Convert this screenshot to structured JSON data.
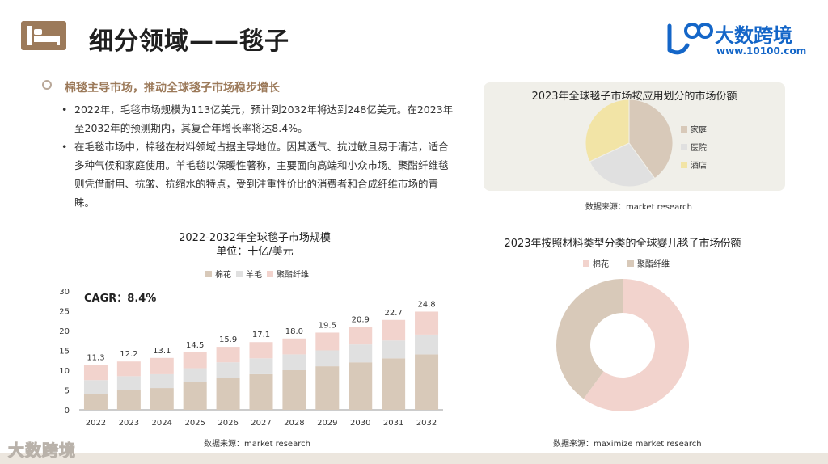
{
  "page": {
    "title": "细分领域——毯子",
    "brand_name": "大数跨境",
    "brand_url": "www.10100.com",
    "watermark": "大数跨境"
  },
  "section": {
    "heading": "棉毯主导市场，推动全球毯子市场稳步增长",
    "bullets": [
      "2022年，毛毯市场规模为113亿美元，预计到2032年将达到248亿美元。在2023年至2032年的预测期内，其复合年增长率将达8.4%。",
      "在毛毯市场中，棉毯在材料领域占据主导地位。因其透气、抗过敏且易于清洁，适合多种气候和家庭使用。羊毛毯以保暖性著称，主要面向高端和小众市场。聚酯纤维毯则凭借耐用、抗皱、抗缩水的特点，受到注重性价比的消费者和合成纤维市场的青睐。"
    ]
  },
  "colors": {
    "cotton": "#d8c9b9",
    "wool": "#e0e0e0",
    "polyester": "#f2d3cd",
    "home": "#d8c9b9",
    "hospital": "#e0e0e0",
    "hotel": "#f2e4a6",
    "accent_brown": "#9c7a5a",
    "brand_blue": "#1466c8"
  },
  "chart_data": [
    {
      "type": "bar",
      "stacked": true,
      "title": "2022-2032年全球毯子市场规模",
      "subtitle": "单位：十亿/美元",
      "annotation": "CAGR：8.4%",
      "source": "数据来源：market research",
      "categories": [
        "2022",
        "2023",
        "2024",
        "2025",
        "2026",
        "2027",
        "2028",
        "2029",
        "2030",
        "2031",
        "2032"
      ],
      "totals": [
        11.3,
        12.2,
        13.1,
        14.5,
        15.9,
        17.1,
        18.0,
        19.5,
        20.9,
        22.7,
        24.8
      ],
      "series": [
        {
          "name": "棉花",
          "values": [
            4,
            5,
            5.5,
            7,
            8,
            9,
            10,
            11,
            12,
            13,
            14
          ]
        },
        {
          "name": "羊毛",
          "values": [
            3.5,
            3.5,
            3.5,
            3.5,
            4,
            4,
            4,
            4,
            4.5,
            4.5,
            5
          ]
        },
        {
          "name": "聚酯纤维",
          "values": [
            3.8,
            3.7,
            4.1,
            4.0,
            3.9,
            4.1,
            4.0,
            4.5,
            4.4,
            5.2,
            5.8
          ]
        }
      ],
      "ylim": [
        0,
        30
      ],
      "yticks": [
        0,
        5,
        10,
        15,
        20,
        25,
        30
      ],
      "legend": "top"
    },
    {
      "type": "pie",
      "title": "2023年全球毯子市场按应用划分的市场份额",
      "source": "数据来源：market research",
      "labels": [
        "家庭",
        "医院",
        "酒店"
      ],
      "values": [
        40,
        28,
        32
      ],
      "legend": "right"
    },
    {
      "type": "pie",
      "donut": true,
      "title": "2023年按照材料类型分类的全球婴儿毯子市场份额",
      "source": "数据来源：maximize market research",
      "labels": [
        "棉花",
        "聚酯纤维"
      ],
      "values": [
        60,
        40
      ],
      "legend": "top"
    }
  ]
}
